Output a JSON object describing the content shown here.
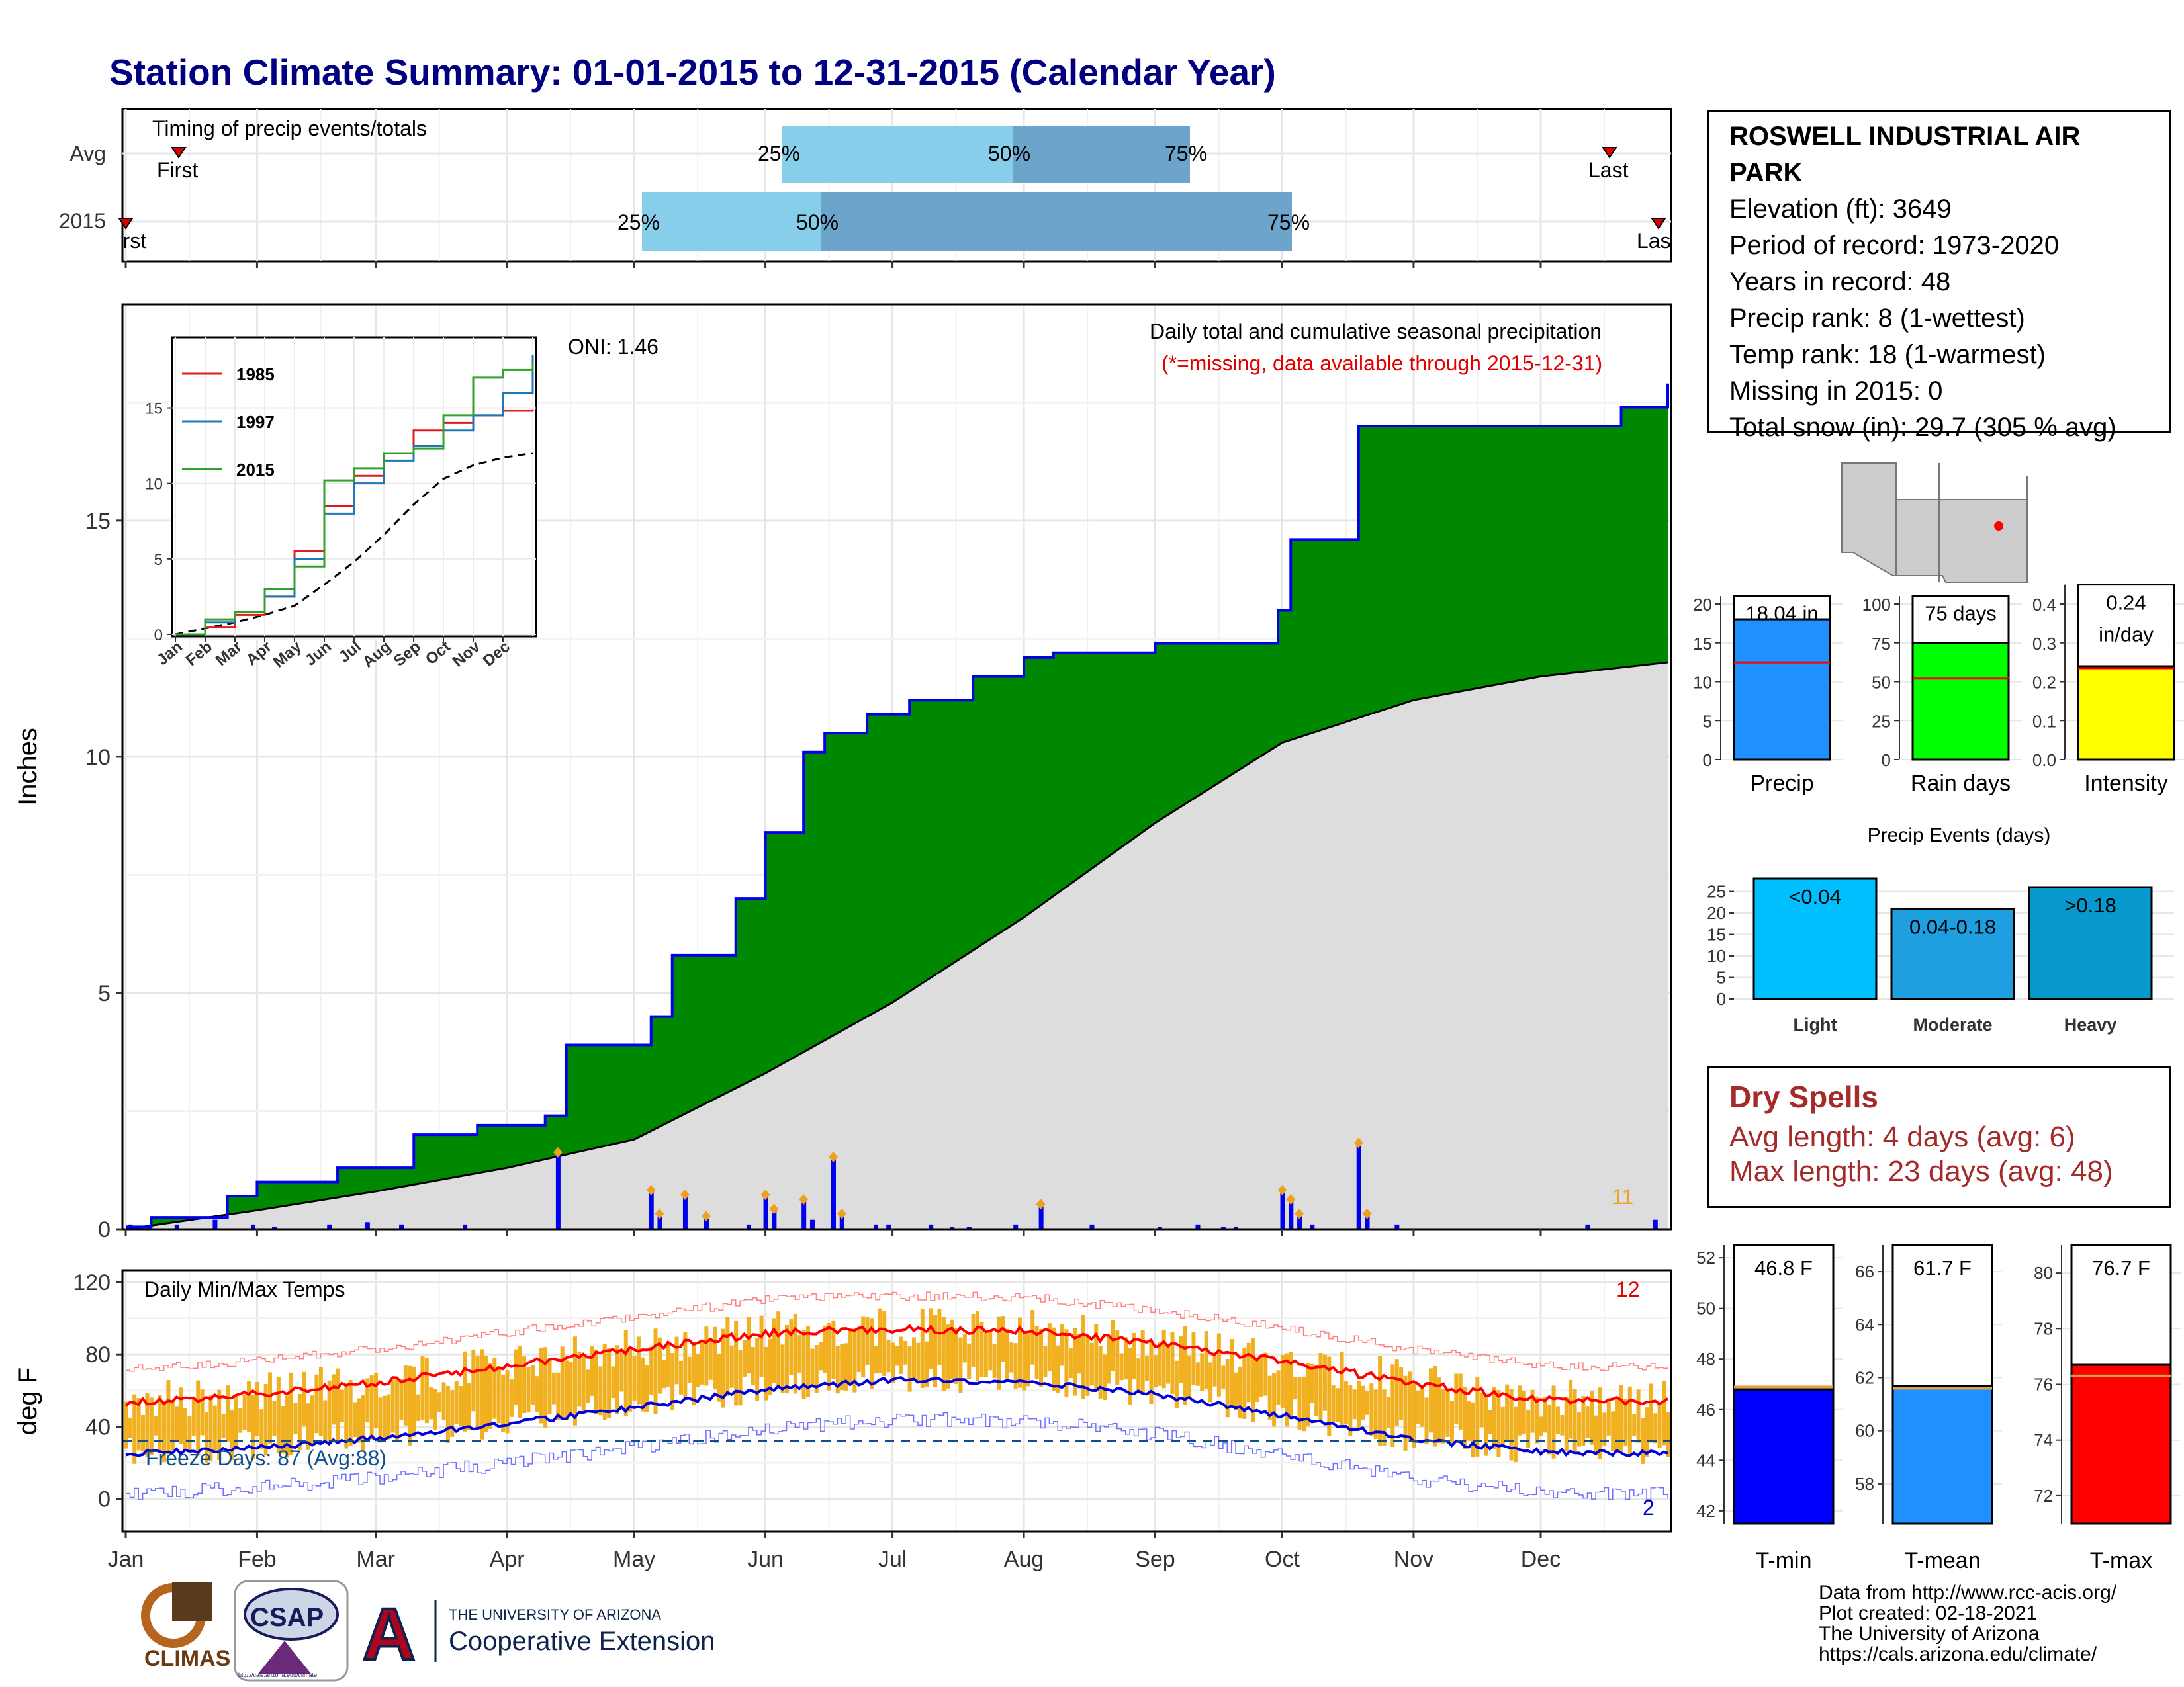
{
  "title": "Station Climate Summary: 01-01-2015 to 12-31-2015 (Calendar Year)",
  "station": {
    "name": "ROSWELL INDUSTRIAL AIR PARK",
    "lines": [
      "Elevation (ft): 3649",
      "Period of record: 1973-2020",
      "Years in record: 48",
      "Precip rank: 8 (1-wettest)",
      "Temp rank: 18 (1-warmest)",
      "Missing in 2015: 0",
      "Total snow (in): 29.7 (305 % avg)"
    ]
  },
  "timing": {
    "label": "Timing of precip events/totals",
    "rows": [
      {
        "name": "Avg",
        "first": "First",
        "last": "Last",
        "q25": "25%",
        "q50": "50%",
        "q75": "75%"
      },
      {
        "name": "2015",
        "first": "First",
        "last": "Last",
        "q25": "25%",
        "q50": "50%",
        "q75": "75%"
      }
    ]
  },
  "precip_panel": {
    "ylabel": "Inches",
    "oni": "ONI: 1.46",
    "note1": "Daily total and cumulative seasonal precipitation",
    "note2": "(*=missing, data available through 2015-12-31)",
    "count": "11",
    "yticks": [
      "0",
      "5",
      "10",
      "15"
    ]
  },
  "inset": {
    "legend": [
      "1985",
      "1997",
      "2015"
    ],
    "months": [
      "Jan",
      "Feb",
      "Mar",
      "Apr",
      "May",
      "Jun",
      "Jul",
      "Aug",
      "Sep",
      "Oct",
      "Nov",
      "Dec"
    ],
    "yticks": [
      "0",
      "5",
      "10",
      "15"
    ]
  },
  "temp_panel": {
    "ylabel": "deg F",
    "label": "Daily Min/Max Temps",
    "freeze": "Freeze Days: 87 (Avg:88)",
    "count_hot": "12",
    "count_cold": "2",
    "yticks": [
      "0",
      "40",
      "80",
      "120"
    ]
  },
  "months": [
    "Jan",
    "Feb",
    "Mar",
    "Apr",
    "May",
    "Jun",
    "Jul",
    "Aug",
    "Sep",
    "Oct",
    "Nov",
    "Dec"
  ],
  "mini_bars": [
    {
      "label": "Precip",
      "value_text": "18.04 in",
      "value": 18.04,
      "avg": 12.5,
      "yticks": [
        "0",
        "5",
        "10",
        "15",
        "20"
      ]
    },
    {
      "label": "Rain days",
      "value_text": "75 days",
      "value": 75,
      "avg": 52,
      "yticks": [
        "0",
        "25",
        "50",
        "75",
        "100"
      ]
    },
    {
      "label": "Intensity",
      "value_text": "0.24 in/day",
      "value": 0.24,
      "avg": 0.235,
      "yticks": [
        "0.0",
        "0.1",
        "0.2",
        "0.3",
        "0.4"
      ]
    }
  ],
  "events": {
    "title": "Precip Events (days)",
    "bars": [
      {
        "label": "Light",
        "text": "<0.04",
        "value": 28
      },
      {
        "label": "Moderate",
        "text": "0.04-0.18",
        "value": 21
      },
      {
        "label": "Heavy",
        "text": ">0.18",
        "value": 26
      }
    ],
    "yticks": [
      "0",
      "5",
      "10",
      "15",
      "20",
      "25"
    ]
  },
  "dry_spells": {
    "title": "Dry Spells",
    "avg": "Avg length: 4 days (avg: 6)",
    "max": "Max length: 23 days (avg: 48)"
  },
  "temp_bars": [
    {
      "label": "T-min",
      "value_text": "46.8 F",
      "value": 46.8,
      "avg": 46.9,
      "yticks": [
        "42",
        "44",
        "46",
        "48",
        "50",
        "52"
      ]
    },
    {
      "label": "T-mean",
      "value_text": "61.7 F",
      "value": 61.7,
      "avg": 61.6,
      "yticks": [
        "58",
        "60",
        "62",
        "64",
        "66"
      ]
    },
    {
      "label": "T-max",
      "value_text": "76.7 F",
      "value": 76.7,
      "avg": 76.3,
      "yticks": [
        "72",
        "74",
        "76",
        "78",
        "80"
      ]
    }
  ],
  "credits": [
    "Data from http://www.rcc-acis.org/",
    "Plot created: 02-18-2021",
    "The University of Arizona",
    "https://cals.arizona.edu/climate/"
  ],
  "logos": {
    "climas": "CLIMAS",
    "csap": "CSAP",
    "csap_url": "http://cals.arizona.edu/climate",
    "ua_line1": "THE UNIVERSITY OF ARIZONA",
    "ua_line2": "Cooperative Extension"
  },
  "colors": {
    "title": "#000080",
    "green": "#008800",
    "blue_line": "#0000ee",
    "avg_fill": "#dddddd",
    "q_light": "#87ceeb",
    "q_dark": "#6ca4cc",
    "orange": "#f0b020",
    "precip_bar": "#1e90ff",
    "raindays_bar": "#00ff00",
    "intensity_bar": "#ffff00",
    "light_bar": "#00bfff",
    "moderate_bar": "#1ea0e0",
    "heavy_bar": "#0899cc",
    "tmin_bar": "#0000ff",
    "tmean_bar": "#1e90ff",
    "tmax_bar": "#ff0000",
    "dry": "#a52a2a"
  },
  "chart_data": [
    {
      "type": "area",
      "name": "cumulative_precip_2015",
      "ylim": [
        0,
        18.5
      ],
      "x": [
        "01-01",
        "01-07",
        "01-25",
        "02-01",
        "02-20",
        "03-10",
        "03-25",
        "04-10",
        "04-15",
        "05-05",
        "05-10",
        "05-25",
        "06-01",
        "06-10",
        "06-15",
        "06-25",
        "07-05",
        "07-20",
        "08-01",
        "08-08",
        "09-01",
        "09-30",
        "10-03",
        "10-19",
        "12-20",
        "12-31"
      ],
      "y": [
        0.05,
        0.25,
        0.7,
        1.0,
        1.3,
        2.0,
        2.2,
        2.4,
        3.9,
        4.5,
        5.8,
        7.0,
        8.4,
        10.1,
        10.5,
        10.9,
        11.2,
        11.7,
        12.1,
        12.2,
        12.4,
        13.1,
        14.6,
        17.0,
        17.4,
        17.9
      ]
    },
    {
      "type": "line",
      "name": "cumulative_precip_avg",
      "ylim": [
        0,
        18.5
      ],
      "x": [
        "01-01",
        "02-01",
        "03-01",
        "04-01",
        "05-01",
        "06-01",
        "07-01",
        "08-01",
        "09-01",
        "10-01",
        "11-01",
        "12-01",
        "12-31"
      ],
      "y": [
        0.0,
        0.4,
        0.8,
        1.3,
        1.9,
        3.3,
        4.8,
        6.6,
        8.6,
        10.3,
        11.2,
        11.7,
        12.0
      ]
    },
    {
      "type": "bar",
      "name": "daily_precip",
      "ylim": [
        0,
        18.5
      ],
      "x": [
        "01-02",
        "01-13",
        "01-22",
        "01-31",
        "02-05",
        "02-18",
        "02-27",
        "03-07",
        "03-22",
        "04-13",
        "05-05",
        "05-07",
        "05-13",
        "05-18",
        "05-28",
        "06-01",
        "06-03",
        "06-10",
        "06-12",
        "06-17",
        "06-19",
        "06-27",
        "06-30",
        "07-10",
        "07-15",
        "07-19",
        "07-30",
        "08-05",
        "08-17",
        "09-02",
        "09-11",
        "09-17",
        "09-20",
        "10-01",
        "10-03",
        "10-05",
        "10-08",
        "10-19",
        "10-21",
        "10-28",
        "12-12",
        "12-28"
      ],
      "y": [
        0.1,
        0.1,
        0.2,
        0.1,
        0.05,
        0.1,
        0.15,
        0.1,
        0.1,
        1.6,
        0.8,
        0.3,
        0.7,
        0.25,
        0.1,
        0.7,
        0.4,
        0.6,
        0.2,
        1.5,
        0.3,
        0.1,
        0.1,
        0.1,
        0.05,
        0.05,
        0.1,
        0.5,
        0.1,
        0.05,
        0.1,
        0.05,
        0.05,
        0.8,
        0.6,
        0.3,
        0.1,
        1.8,
        0.3,
        0.1,
        0.1,
        0.2
      ]
    },
    {
      "type": "line",
      "name": "daily_temps",
      "ylim": [
        -10,
        120
      ],
      "x": [
        "Jan",
        "Feb",
        "Mar",
        "Apr",
        "May",
        "Jun",
        "Jul",
        "Aug",
        "Sep",
        "Oct",
        "Nov",
        "Dec",
        "Dec-end"
      ],
      "avg_max": [
        53,
        58,
        65,
        74,
        83,
        92,
        94,
        93,
        86,
        76,
        64,
        55,
        54
      ],
      "avg_min": [
        25,
        28,
        34,
        42,
        51,
        61,
        66,
        65,
        58,
        46,
        33,
        26,
        25
      ],
      "freeze_line": 32
    },
    {
      "type": "line",
      "name": "inset_cumulative",
      "x_months": [
        1,
        2,
        3,
        4,
        5,
        6,
        7,
        8,
        9,
        10,
        11,
        12,
        13
      ],
      "y1985": [
        0,
        0.5,
        1.3,
        2.5,
        5.5,
        8.5,
        10.5,
        12,
        13.5,
        14,
        14.5,
        14.8,
        14.9
      ],
      "y1997": [
        0,
        0.8,
        1.5,
        2.5,
        5,
        8,
        10,
        11.5,
        12.5,
        13.5,
        14.5,
        16,
        18.5
      ],
      "y2015": [
        0,
        1,
        1.5,
        3,
        4.5,
        10.2,
        11,
        12,
        12.3,
        14.5,
        17,
        17.5,
        18.0
      ],
      "yavg": [
        0,
        0.4,
        0.8,
        1.3,
        1.9,
        3.3,
        4.8,
        6.6,
        8.6,
        10.3,
        11.2,
        11.7,
        12.0
      ]
    }
  ]
}
